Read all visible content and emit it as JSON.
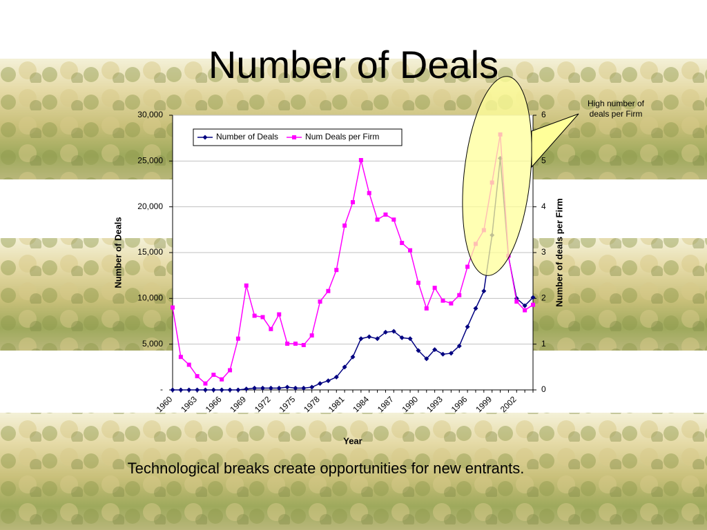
{
  "chart_data": {
    "type": "line",
    "title": "Number of Deals",
    "caption": "Technological breaks create opportunities for new entrants.",
    "annotation": "High number of deals per Firm",
    "xlabel": "Year",
    "ylabel": "Number of Deals",
    "y2label": "Number of deals per Firm",
    "categories": [
      "1960",
      null,
      null,
      "1963",
      null,
      null,
      "1966",
      null,
      null,
      "1969",
      null,
      null,
      "1972",
      null,
      null,
      "1975",
      null,
      null,
      "1978",
      null,
      null,
      "1981",
      null,
      null,
      "1984",
      null,
      null,
      "1987",
      null,
      null,
      "1990",
      null,
      null,
      "1993",
      null,
      null,
      "1996",
      null,
      null,
      "1999",
      null,
      null,
      "2002",
      null,
      null
    ],
    "series": [
      {
        "name": "Number of Deals",
        "color": "#000080",
        "marker": "diamond",
        "values": [
          0,
          0,
          0,
          0,
          0,
          0,
          0,
          0,
          0,
          100,
          200,
          200,
          200,
          200,
          300,
          200,
          200,
          300,
          700,
          1000,
          1400,
          2500,
          3600,
          5600,
          5800,
          5600,
          6300,
          6400,
          5700,
          5600,
          4300,
          3400,
          4400,
          3900,
          4000,
          4800,
          6900,
          8900,
          10800,
          16900,
          25300,
          14600,
          10000,
          9200,
          10100
        ]
      },
      {
        "name": "Num Deals per Firm",
        "color": "#ff00ff",
        "marker": "square",
        "axis": "y2",
        "values": [
          1.8,
          0.72,
          0.55,
          0.3,
          0.14,
          0.33,
          0.23,
          0.43,
          1.12,
          2.28,
          1.62,
          1.59,
          1.33,
          1.65,
          1.01,
          1.01,
          0.98,
          1.19,
          1.93,
          2.16,
          2.62,
          3.59,
          4.1,
          5.02,
          4.3,
          3.72,
          3.83,
          3.72,
          3.21,
          3.05,
          2.34,
          1.78,
          2.23,
          1.95,
          1.89,
          2.07,
          2.69,
          3.19,
          3.49,
          4.53,
          5.58,
          2.93,
          1.93,
          1.74,
          1.86
        ]
      }
    ],
    "ylim": [
      0,
      30000
    ],
    "yticks": [
      {
        "value": 0,
        "label": "-"
      },
      {
        "value": 5000,
        "label": "5,000"
      },
      {
        "value": 10000,
        "label": "10,000"
      },
      {
        "value": 15000,
        "label": "15,000"
      },
      {
        "value": 20000,
        "label": "20,000"
      },
      {
        "value": 25000,
        "label": "25,000"
      },
      {
        "value": 30000,
        "label": "30,000"
      }
    ],
    "y2lim": [
      0,
      6
    ],
    "y2ticks": [
      0,
      1,
      2,
      3,
      4,
      5,
      6
    ],
    "grid": true,
    "legend": "upper left"
  }
}
